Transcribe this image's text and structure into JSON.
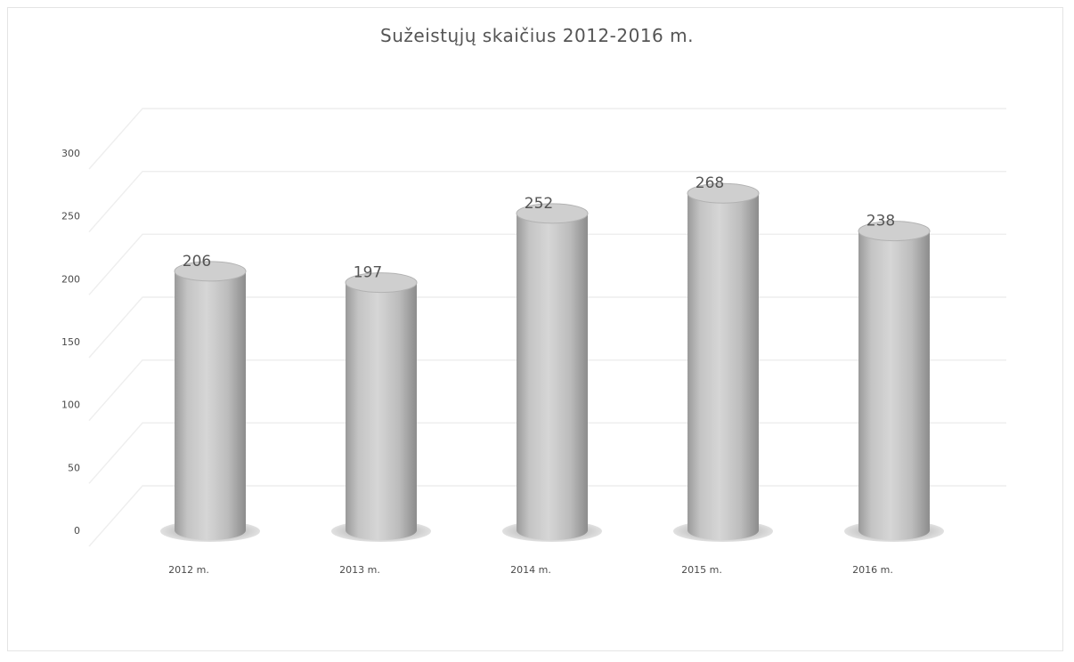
{
  "chart_data": {
    "type": "bar",
    "style": "3d-cylinder",
    "title": "Sužeistųjų skaičius 2012-2016 m.",
    "categories": [
      "2012 m.",
      "2013 m.",
      "2014 m.",
      "2015 m.",
      "2016 m."
    ],
    "values": [
      206,
      197,
      252,
      268,
      238
    ],
    "ylim": [
      0,
      300
    ],
    "yticks": [
      0,
      50,
      100,
      150,
      200,
      250,
      300
    ],
    "xlabel": "",
    "ylabel": "",
    "grid": true,
    "legend": "none",
    "data_labels": true,
    "colors": {
      "bar": "#bdbdbd",
      "bar_dark": "#8f8f8f",
      "bar_light": "#d8d8d8",
      "top": "#cfcfcf",
      "grid": "#eeeeee",
      "text": "#4a4a4a"
    }
  }
}
